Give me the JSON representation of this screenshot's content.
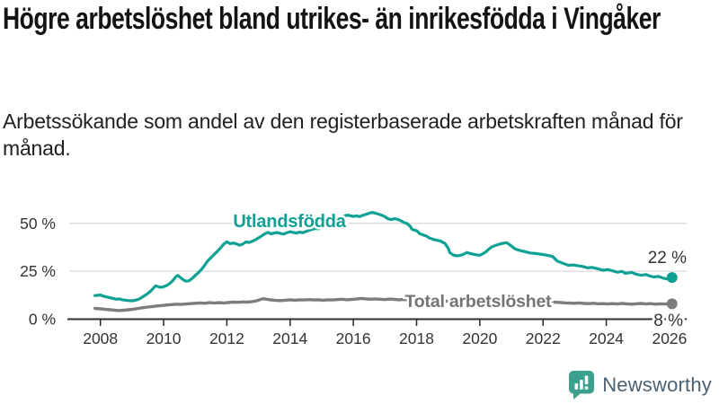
{
  "header": {
    "title": "Högre arbetslöshet bland utrikes- än inrikesfödda i Vingåker",
    "subtitle": "Arbetssökande som andel av den registerbaserade arbetskraften månad för månad."
  },
  "footer": {
    "brand": "Newsworthy",
    "icon": "bar-chart-speech-bubble"
  },
  "colors": {
    "series_utlandsfodda": "#0fa294",
    "series_total": "#7d7d7d",
    "series_total_label": "#747474",
    "grid": "#d8d8d8",
    "axis": "#2f2f2f",
    "tick_text": "#333333",
    "value_text": "#333333",
    "logo_teal": "#3aa18f",
    "logo_text": "#4c6172"
  },
  "chart_data": {
    "type": "line",
    "title": "Högre arbetslöshet bland utrikes- än inrikesfödda i Vingåker",
    "subtitle": "Arbetssökande som andel av den registerbaserade arbetskraften månad för månad.",
    "xlabel": "",
    "ylabel": "",
    "ylim": [
      0,
      60
    ],
    "xlim": [
      2007.8,
      2026.6
    ],
    "grid": "horizontal",
    "legend_position": "inline-labels",
    "x_ticks": [
      {
        "year": 2008,
        "label": "2008"
      },
      {
        "year": 2010,
        "label": "2010"
      },
      {
        "year": 2012,
        "label": "2012"
      },
      {
        "year": 2014,
        "label": "2014"
      },
      {
        "year": 2016,
        "label": "2016"
      },
      {
        "year": 2018,
        "label": "2018"
      },
      {
        "year": 2020,
        "label": "2020"
      },
      {
        "year": 2022,
        "label": "2022"
      },
      {
        "year": 2024,
        "label": "2024"
      },
      {
        "year": 2026,
        "label": "2026"
      }
    ],
    "y_ticks": [
      {
        "pct": 0,
        "label": "0 %"
      },
      {
        "pct": 25,
        "label": "25 %"
      },
      {
        "pct": 50,
        "label": "50 %"
      }
    ],
    "series": [
      {
        "id": "utlandsfodda",
        "label": "Utlandsfödda",
        "color": "#0fa294",
        "end_value_label": "22 %",
        "end_value": 22,
        "points": [
          [
            2007.83,
            12.3
          ],
          [
            2008.0,
            12.6
          ],
          [
            2008.1,
            12.0
          ],
          [
            2008.2,
            11.6
          ],
          [
            2008.3,
            11.2
          ],
          [
            2008.4,
            10.8
          ],
          [
            2008.5,
            10.4
          ],
          [
            2008.6,
            10.6
          ],
          [
            2008.7,
            10.1
          ],
          [
            2008.8,
            9.9
          ],
          [
            2008.9,
            9.7
          ],
          [
            2009.0,
            9.6
          ],
          [
            2009.1,
            9.9
          ],
          [
            2009.2,
            10.3
          ],
          [
            2009.3,
            11.2
          ],
          [
            2009.4,
            12.3
          ],
          [
            2009.5,
            13.4
          ],
          [
            2009.6,
            14.8
          ],
          [
            2009.7,
            16.6
          ],
          [
            2009.75,
            17.4
          ],
          [
            2009.8,
            17.1
          ],
          [
            2009.9,
            16.6
          ],
          [
            2010.0,
            16.9
          ],
          [
            2010.1,
            17.6
          ],
          [
            2010.2,
            18.7
          ],
          [
            2010.3,
            20.3
          ],
          [
            2010.4,
            22.4
          ],
          [
            2010.45,
            22.8
          ],
          [
            2010.5,
            22.1
          ],
          [
            2010.6,
            20.8
          ],
          [
            2010.7,
            19.8
          ],
          [
            2010.8,
            20.0
          ],
          [
            2010.9,
            21.2
          ],
          [
            2011.0,
            22.8
          ],
          [
            2011.1,
            24.3
          ],
          [
            2011.2,
            26.0
          ],
          [
            2011.3,
            28.2
          ],
          [
            2011.4,
            30.5
          ],
          [
            2011.5,
            32.1
          ],
          [
            2011.6,
            33.8
          ],
          [
            2011.7,
            35.4
          ],
          [
            2011.8,
            37.2
          ],
          [
            2011.9,
            39.1
          ],
          [
            2012.0,
            40.4
          ],
          [
            2012.1,
            39.4
          ],
          [
            2012.2,
            39.7
          ],
          [
            2012.3,
            39.3
          ],
          [
            2012.4,
            38.6
          ],
          [
            2012.5,
            39.1
          ],
          [
            2012.6,
            40.3
          ],
          [
            2012.7,
            40.0
          ],
          [
            2012.8,
            40.6
          ],
          [
            2012.9,
            41.4
          ],
          [
            2013.0,
            42.4
          ],
          [
            2013.1,
            43.4
          ],
          [
            2013.2,
            44.5
          ],
          [
            2013.3,
            45.3
          ],
          [
            2013.4,
            44.5
          ],
          [
            2013.5,
            44.9
          ],
          [
            2013.6,
            45.2
          ],
          [
            2013.7,
            44.7
          ],
          [
            2013.8,
            44.4
          ],
          [
            2013.9,
            45.1
          ],
          [
            2014.0,
            45.6
          ],
          [
            2014.1,
            45.2
          ],
          [
            2014.2,
            44.9
          ],
          [
            2014.3,
            45.4
          ],
          [
            2014.4,
            45.1
          ],
          [
            2014.5,
            45.7
          ],
          [
            2014.6,
            46.3
          ],
          [
            2014.7,
            46.9
          ],
          [
            2014.8,
            47.3
          ],
          [
            2014.9,
            47.1
          ],
          [
            2015.0,
            48.2
          ],
          [
            2015.1,
            48.9
          ],
          [
            2015.2,
            49.6
          ],
          [
            2015.3,
            50.2
          ],
          [
            2015.4,
            51.0
          ],
          [
            2015.5,
            51.9
          ],
          [
            2015.6,
            52.8
          ],
          [
            2015.7,
            53.6
          ],
          [
            2015.8,
            54.3
          ],
          [
            2015.9,
            54.0
          ],
          [
            2016.0,
            53.6
          ],
          [
            2016.1,
            53.9
          ],
          [
            2016.2,
            53.5
          ],
          [
            2016.3,
            54.2
          ],
          [
            2016.4,
            54.7
          ],
          [
            2016.5,
            55.2
          ],
          [
            2016.6,
            55.7
          ],
          [
            2016.7,
            55.2
          ],
          [
            2016.8,
            54.8
          ],
          [
            2016.9,
            54.2
          ],
          [
            2017.0,
            53.5
          ],
          [
            2017.1,
            52.3
          ],
          [
            2017.2,
            52.0
          ],
          [
            2017.3,
            52.4
          ],
          [
            2017.4,
            52.1
          ],
          [
            2017.5,
            51.4
          ],
          [
            2017.6,
            50.4
          ],
          [
            2017.7,
            49.9
          ],
          [
            2017.8,
            48.4
          ],
          [
            2017.85,
            47.0
          ],
          [
            2017.9,
            46.6
          ],
          [
            2018.0,
            46.2
          ],
          [
            2018.1,
            44.6
          ],
          [
            2018.2,
            44.0
          ],
          [
            2018.3,
            43.4
          ],
          [
            2018.4,
            42.4
          ],
          [
            2018.5,
            41.8
          ],
          [
            2018.6,
            41.3
          ],
          [
            2018.75,
            40.8
          ],
          [
            2018.9,
            39.5
          ],
          [
            2019.0,
            37.0
          ],
          [
            2019.05,
            34.8
          ],
          [
            2019.15,
            33.5
          ],
          [
            2019.3,
            33.0
          ],
          [
            2019.45,
            33.6
          ],
          [
            2019.6,
            34.8
          ],
          [
            2019.7,
            34.2
          ],
          [
            2019.85,
            33.7
          ],
          [
            2020.0,
            33.3
          ],
          [
            2020.1,
            34.2
          ],
          [
            2020.2,
            35.2
          ],
          [
            2020.3,
            36.7
          ],
          [
            2020.4,
            37.9
          ],
          [
            2020.55,
            38.8
          ],
          [
            2020.7,
            39.5
          ],
          [
            2020.85,
            39.9
          ],
          [
            2020.95,
            38.8
          ],
          [
            2021.1,
            36.8
          ],
          [
            2021.2,
            36.1
          ],
          [
            2021.4,
            35.3
          ],
          [
            2021.6,
            34.5
          ],
          [
            2021.8,
            34.2
          ],
          [
            2022.0,
            33.7
          ],
          [
            2022.15,
            33.3
          ],
          [
            2022.3,
            32.7
          ],
          [
            2022.45,
            30.3
          ],
          [
            2022.6,
            29.3
          ],
          [
            2022.8,
            28.1
          ],
          [
            2022.95,
            28.3
          ],
          [
            2023.1,
            27.9
          ],
          [
            2023.25,
            27.5
          ],
          [
            2023.4,
            26.8
          ],
          [
            2023.55,
            27.0
          ],
          [
            2023.7,
            26.4
          ],
          [
            2023.9,
            25.5
          ],
          [
            2024.05,
            25.9
          ],
          [
            2024.2,
            25.2
          ],
          [
            2024.35,
            24.5
          ],
          [
            2024.5,
            24.9
          ],
          [
            2024.6,
            23.9
          ],
          [
            2024.8,
            24.4
          ],
          [
            2024.95,
            23.4
          ],
          [
            2025.1,
            22.9
          ],
          [
            2025.25,
            23.3
          ],
          [
            2025.4,
            22.4
          ],
          [
            2025.5,
            22.0
          ],
          [
            2025.65,
            22.3
          ],
          [
            2025.8,
            21.4
          ],
          [
            2025.95,
            20.9
          ],
          [
            2026.08,
            21.7
          ]
        ]
      },
      {
        "id": "total",
        "label": "Total arbetslöshet",
        "color": "#7d7d7d",
        "end_value_label": "8 %",
        "end_value": 8,
        "points": [
          [
            2007.83,
            5.6
          ],
          [
            2008.0,
            5.4
          ],
          [
            2008.15,
            5.1
          ],
          [
            2008.3,
            4.9
          ],
          [
            2008.45,
            4.7
          ],
          [
            2008.6,
            4.5
          ],
          [
            2008.75,
            4.7
          ],
          [
            2008.9,
            4.9
          ],
          [
            2009.05,
            5.2
          ],
          [
            2009.2,
            5.6
          ],
          [
            2009.35,
            6.0
          ],
          [
            2009.5,
            6.3
          ],
          [
            2009.65,
            6.6
          ],
          [
            2009.8,
            6.9
          ],
          [
            2009.95,
            7.1
          ],
          [
            2010.1,
            7.4
          ],
          [
            2010.25,
            7.6
          ],
          [
            2010.4,
            7.8
          ],
          [
            2010.55,
            7.7
          ],
          [
            2010.7,
            7.9
          ],
          [
            2010.85,
            8.1
          ],
          [
            2011.0,
            8.3
          ],
          [
            2011.15,
            8.5
          ],
          [
            2011.3,
            8.3
          ],
          [
            2011.45,
            8.6
          ],
          [
            2011.6,
            8.4
          ],
          [
            2011.75,
            8.6
          ],
          [
            2011.9,
            8.4
          ],
          [
            2012.05,
            8.7
          ],
          [
            2012.2,
            8.9
          ],
          [
            2012.35,
            8.8
          ],
          [
            2012.5,
            9.0
          ],
          [
            2012.65,
            8.9
          ],
          [
            2012.8,
            9.2
          ],
          [
            2012.95,
            9.6
          ],
          [
            2013.05,
            10.2
          ],
          [
            2013.15,
            10.7
          ],
          [
            2013.25,
            10.4
          ],
          [
            2013.4,
            10.0
          ],
          [
            2013.55,
            9.8
          ],
          [
            2013.7,
            9.7
          ],
          [
            2013.85,
            9.9
          ],
          [
            2014.0,
            10.1
          ],
          [
            2014.15,
            9.9
          ],
          [
            2014.3,
            10.1
          ],
          [
            2014.45,
            10.0
          ],
          [
            2014.6,
            10.2
          ],
          [
            2014.75,
            10.0
          ],
          [
            2014.9,
            10.1
          ],
          [
            2015.05,
            9.9
          ],
          [
            2015.2,
            10.1
          ],
          [
            2015.35,
            10.0
          ],
          [
            2015.5,
            10.2
          ],
          [
            2015.65,
            10.4
          ],
          [
            2015.8,
            10.1
          ],
          [
            2015.95,
            10.3
          ],
          [
            2016.1,
            10.5
          ],
          [
            2016.25,
            10.8
          ],
          [
            2016.4,
            10.6
          ],
          [
            2016.55,
            10.4
          ],
          [
            2016.7,
            10.6
          ],
          [
            2016.85,
            10.4
          ],
          [
            2017.0,
            10.2
          ],
          [
            2017.15,
            10.5
          ],
          [
            2017.3,
            10.3
          ],
          [
            2017.45,
            10.1
          ],
          [
            2017.6,
            10.3
          ],
          [
            2017.75,
            10.1
          ],
          [
            2017.9,
            10.0
          ],
          [
            2018.05,
            10.2
          ],
          [
            2018.2,
            10.0
          ],
          [
            2018.35,
            9.8
          ],
          [
            2018.5,
            9.9
          ],
          [
            2018.65,
            9.7
          ],
          [
            2018.8,
            9.6
          ],
          [
            2018.95,
            9.4
          ],
          [
            2019.1,
            9.3
          ],
          [
            2019.25,
            9.4
          ],
          [
            2019.4,
            9.2
          ],
          [
            2019.55,
            9.3
          ],
          [
            2019.7,
            9.1
          ],
          [
            2019.85,
            9.2
          ],
          [
            2020.0,
            9.4
          ],
          [
            2020.15,
            9.8
          ],
          [
            2020.3,
            10.1
          ],
          [
            2020.45,
            10.4
          ],
          [
            2020.6,
            10.2
          ],
          [
            2020.75,
            10.0
          ],
          [
            2020.9,
            9.9
          ],
          [
            2021.05,
            9.7
          ],
          [
            2021.2,
            9.5
          ],
          [
            2021.35,
            9.4
          ],
          [
            2021.5,
            9.2
          ],
          [
            2021.65,
            9.3
          ],
          [
            2021.8,
            9.1
          ],
          [
            2021.95,
            9.0
          ],
          [
            2022.1,
            8.9
          ],
          [
            2022.25,
            9.0
          ],
          [
            2022.4,
            8.8
          ],
          [
            2022.55,
            8.7
          ],
          [
            2022.7,
            8.5
          ],
          [
            2022.85,
            8.4
          ],
          [
            2023.0,
            8.3
          ],
          [
            2023.15,
            8.5
          ],
          [
            2023.3,
            8.2
          ],
          [
            2023.45,
            8.1
          ],
          [
            2023.6,
            8.3
          ],
          [
            2023.75,
            8.0
          ],
          [
            2023.9,
            8.1
          ],
          [
            2024.05,
            7.9
          ],
          [
            2024.2,
            8.1
          ],
          [
            2024.35,
            7.9
          ],
          [
            2024.5,
            8.2
          ],
          [
            2024.65,
            8.0
          ],
          [
            2024.8,
            7.8
          ],
          [
            2024.95,
            8.0
          ],
          [
            2025.1,
            8.2
          ],
          [
            2025.25,
            7.9
          ],
          [
            2025.4,
            8.1
          ],
          [
            2025.55,
            7.8
          ],
          [
            2025.7,
            8.0
          ],
          [
            2025.85,
            7.9
          ],
          [
            2026.08,
            8.0
          ]
        ]
      }
    ]
  }
}
